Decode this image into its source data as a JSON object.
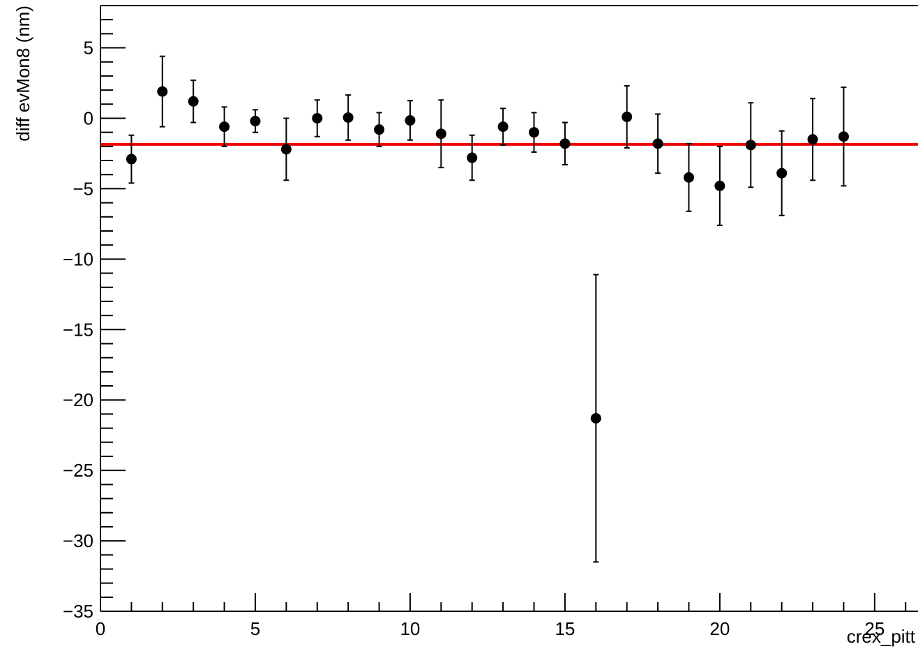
{
  "chart_data": {
    "type": "scatter",
    "title": "",
    "xlabel": "crex_pitt",
    "ylabel": "diff evMon8 (nm)",
    "xlim": [
      0,
      26.4
    ],
    "ylim": [
      -35,
      8
    ],
    "x_ticks": [
      0,
      5,
      10,
      15,
      20,
      25
    ],
    "y_ticks": [
      -35,
      -30,
      -25,
      -20,
      -15,
      -10,
      -5,
      0,
      5
    ],
    "x_tick_labels": [
      "0",
      "5",
      "10",
      "15",
      "20",
      "25"
    ],
    "y_tick_labels": [
      "−35",
      "−30",
      "−25",
      "−20",
      "−15",
      "−10",
      "−5",
      "0",
      "5"
    ],
    "grid": false,
    "series": [
      {
        "marker_color": "#000000",
        "points": [
          {
            "x": 1,
            "y": -2.9,
            "err": 1.7
          },
          {
            "x": 2,
            "y": 1.9,
            "err": 2.5
          },
          {
            "x": 3,
            "y": 1.2,
            "err": 1.5
          },
          {
            "x": 4,
            "y": -0.6,
            "err": 1.4
          },
          {
            "x": 5,
            "y": -0.2,
            "err": 0.8
          },
          {
            "x": 6,
            "y": -2.2,
            "err": 2.2
          },
          {
            "x": 7,
            "y": 0.0,
            "err": 1.3
          },
          {
            "x": 8,
            "y": 0.05,
            "err": 1.6
          },
          {
            "x": 9,
            "y": -0.8,
            "err": 1.2
          },
          {
            "x": 10,
            "y": -0.15,
            "err": 1.4
          },
          {
            "x": 11,
            "y": -1.1,
            "err": 2.4
          },
          {
            "x": 12,
            "y": -2.8,
            "err": 1.6
          },
          {
            "x": 13,
            "y": -0.6,
            "err": 1.3
          },
          {
            "x": 14,
            "y": -1.0,
            "err": 1.4
          },
          {
            "x": 15,
            "y": -1.8,
            "err": 1.5
          },
          {
            "x": 16,
            "y": -21.3,
            "err": 10.2
          },
          {
            "x": 17,
            "y": 0.1,
            "err": 2.2
          },
          {
            "x": 18,
            "y": -1.8,
            "err": 2.1
          },
          {
            "x": 19,
            "y": -4.2,
            "err": 2.4
          },
          {
            "x": 20,
            "y": -4.8,
            "err": 2.8
          },
          {
            "x": 21,
            "y": -1.9,
            "err": 3.0
          },
          {
            "x": 22,
            "y": -3.9,
            "err": 3.0
          },
          {
            "x": 23,
            "y": -1.5,
            "err": 2.9
          },
          {
            "x": 24,
            "y": -1.3,
            "err": 3.5
          }
        ]
      }
    ],
    "fit_line": {
      "y": -1.85,
      "color": "#ee0000"
    }
  }
}
